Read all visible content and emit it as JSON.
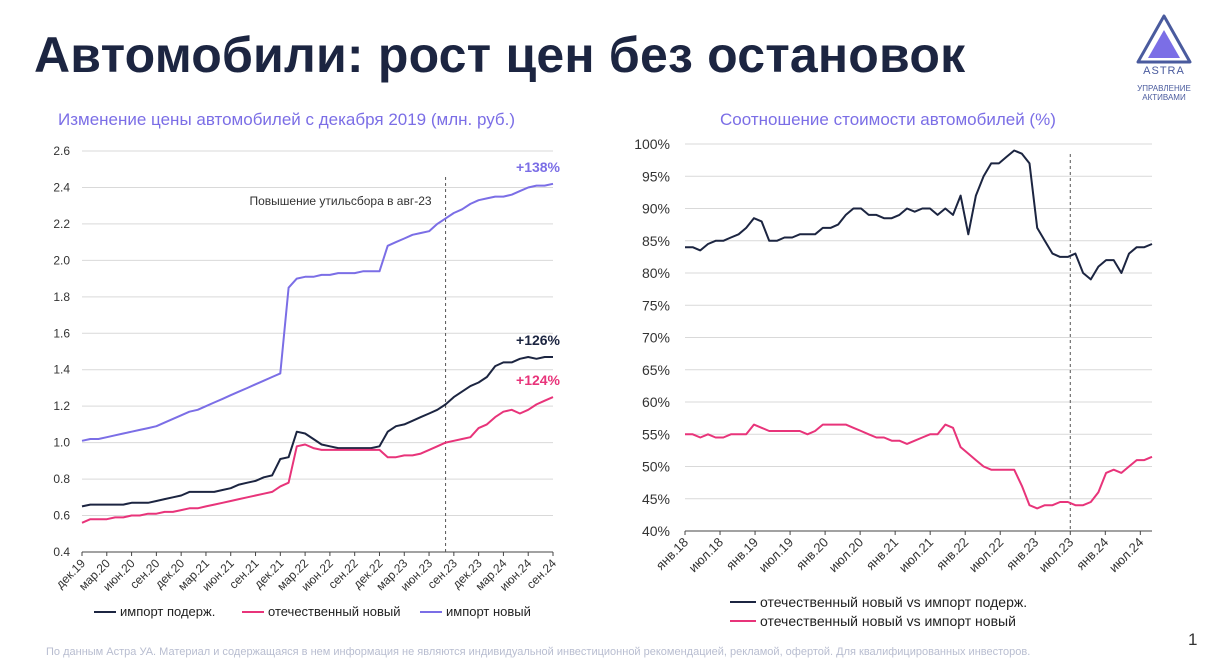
{
  "page": {
    "title": "Автомобили: рост цен без остановок",
    "logo": {
      "name": "ASTRA",
      "subtitle_line1": "УПРАВЛЕНИЕ",
      "subtitle_line2": "АКТИВАМИ"
    },
    "footer": "По данным Астра УА. Материал и содержащаяся в нем информация не являются индивидуальной инвестиционной рекомендацией, рекламой, офертой. Для квалифицированных инвесторов.",
    "page_number": "1"
  },
  "chart_data": [
    {
      "type": "line",
      "title": "Изменение цены автомобилей с декабря 2019 (млн. руб.)",
      "xlabel": "",
      "ylabel": "",
      "ylim": [
        0.4,
        2.6
      ],
      "y_ticks": [
        "0.4",
        "0.6",
        "0.8",
        "1.0",
        "1.2",
        "1.4",
        "1.6",
        "1.8",
        "2.0",
        "2.2",
        "2.4",
        "2.6"
      ],
      "grid": true,
      "legend": "bottom",
      "x": [
        "дек.19",
        "янв.20",
        "фев.20",
        "мар.20",
        "апр.20",
        "май.20",
        "июн.20",
        "июл.20",
        "авг.20",
        "сен.20",
        "окт.20",
        "ноя.20",
        "дек.20",
        "янв.21",
        "фев.21",
        "мар.21",
        "апр.21",
        "май.21",
        "июн.21",
        "июл.21",
        "авг.21",
        "сен.21",
        "окт.21",
        "ноя.21",
        "дек.21",
        "янв.22",
        "фев.22",
        "мар.22",
        "апр.22",
        "май.22",
        "июн.22",
        "июл.22",
        "авг.22",
        "сен.22",
        "окт.22",
        "ноя.22",
        "дек.22",
        "янв.23",
        "фев.23",
        "мар.23",
        "апр.23",
        "май.23",
        "июн.23",
        "июл.23",
        "авг.23",
        "сен.23",
        "окт.23",
        "ноя.23",
        "дек.23",
        "янв.24",
        "фев.24",
        "мар.24",
        "апр.24",
        "май.24",
        "июн.24",
        "июл.24",
        "авг.24",
        "сен.24"
      ],
      "x_tick_labels": [
        "дек.19",
        "мар.20",
        "июн.20",
        "сен.20",
        "дек.20",
        "мар.21",
        "июн.21",
        "сен.21",
        "дек.21",
        "мар.22",
        "июн.22",
        "сен.22",
        "дек.22",
        "мар.23",
        "июн.23",
        "сен.23",
        "дек.23",
        "мар.24",
        "июн.24",
        "сен.24"
      ],
      "series": [
        {
          "name": "импорт подерж.",
          "color": "#1c2541",
          "end_label": "+126%",
          "values": [
            0.65,
            0.66,
            0.66,
            0.66,
            0.66,
            0.66,
            0.67,
            0.67,
            0.67,
            0.68,
            0.69,
            0.7,
            0.71,
            0.73,
            0.73,
            0.73,
            0.73,
            0.74,
            0.75,
            0.77,
            0.78,
            0.79,
            0.81,
            0.82,
            0.91,
            0.92,
            1.06,
            1.05,
            1.02,
            0.99,
            0.98,
            0.97,
            0.97,
            0.97,
            0.97,
            0.97,
            0.98,
            1.06,
            1.09,
            1.1,
            1.12,
            1.14,
            1.16,
            1.18,
            1.21,
            1.25,
            1.28,
            1.31,
            1.33,
            1.36,
            1.42,
            1.44,
            1.44,
            1.46,
            1.47,
            1.46,
            1.47,
            1.47
          ]
        },
        {
          "name": "отечественный новый",
          "color": "#e8347a",
          "end_label": "+124%",
          "values": [
            0.56,
            0.58,
            0.58,
            0.58,
            0.59,
            0.59,
            0.6,
            0.6,
            0.61,
            0.61,
            0.62,
            0.62,
            0.63,
            0.64,
            0.64,
            0.65,
            0.66,
            0.67,
            0.68,
            0.69,
            0.7,
            0.71,
            0.72,
            0.73,
            0.76,
            0.78,
            0.98,
            0.99,
            0.97,
            0.96,
            0.96,
            0.96,
            0.96,
            0.96,
            0.96,
            0.96,
            0.96,
            0.92,
            0.92,
            0.93,
            0.93,
            0.94,
            0.96,
            0.98,
            1.0,
            1.01,
            1.02,
            1.03,
            1.08,
            1.1,
            1.14,
            1.17,
            1.18,
            1.16,
            1.18,
            1.21,
            1.23,
            1.25
          ]
        },
        {
          "name": "импорт новый",
          "color": "#7b6ee6",
          "end_label": "+138%",
          "values": [
            1.01,
            1.02,
            1.02,
            1.03,
            1.04,
            1.05,
            1.06,
            1.07,
            1.08,
            1.09,
            1.11,
            1.13,
            1.15,
            1.17,
            1.18,
            1.2,
            1.22,
            1.24,
            1.26,
            1.28,
            1.3,
            1.32,
            1.34,
            1.36,
            1.38,
            1.85,
            1.9,
            1.91,
            1.91,
            1.92,
            1.92,
            1.93,
            1.93,
            1.93,
            1.94,
            1.94,
            1.94,
            2.08,
            2.1,
            2.12,
            2.14,
            2.15,
            2.16,
            2.2,
            2.23,
            2.26,
            2.28,
            2.31,
            2.33,
            2.34,
            2.35,
            2.35,
            2.36,
            2.38,
            2.4,
            2.41,
            2.41,
            2.42
          ]
        }
      ],
      "annotation": {
        "text": "Повышение утильсбора в авг-23",
        "at_x": "авг.23"
      }
    },
    {
      "type": "line",
      "title": "Соотношение стоимости автомобилей (%)",
      "xlabel": "",
      "ylabel": "",
      "ylim": [
        40,
        100
      ],
      "y_ticks": [
        "40%",
        "45%",
        "50%",
        "55%",
        "60%",
        "65%",
        "70%",
        "75%",
        "80%",
        "85%",
        "90%",
        "95%",
        "100%"
      ],
      "grid": true,
      "legend": "bottom",
      "x_start": "янв.18",
      "x_tick_labels": [
        "янв.18",
        "июл.18",
        "янв.19",
        "июл.19",
        "янв.20",
        "июл.20",
        "янв.21",
        "июл.21",
        "янв.22",
        "июл.22",
        "янв.23",
        "июл.23",
        "янв.24",
        "июл.24"
      ],
      "series": [
        {
          "name": "отечественный новый vs импорт  подерж.",
          "color": "#1c2541",
          "values": [
            84,
            84,
            83.5,
            84.5,
            85,
            85,
            85.5,
            86,
            87,
            88.5,
            88,
            85,
            85,
            85.5,
            85.5,
            86,
            86,
            86,
            87,
            87,
            87.5,
            89,
            90,
            90,
            89,
            89,
            88.5,
            88.5,
            89,
            90,
            89.5,
            90,
            90,
            89,
            90,
            89,
            92,
            86,
            92,
            95,
            97,
            97,
            98,
            99,
            98.5,
            97,
            87,
            85,
            83,
            82.5,
            82.5,
            83,
            80,
            79,
            81,
            82,
            82,
            80,
            83,
            84,
            84,
            84.5
          ]
        },
        {
          "name": "отечественный новый vs импорт новый",
          "color": "#e8347a",
          "values": [
            55,
            55,
            54.5,
            55,
            54.5,
            54.5,
            55,
            55,
            55,
            56.5,
            56,
            55.5,
            55.5,
            55.5,
            55.5,
            55.5,
            55,
            55.5,
            56.5,
            56.5,
            56.5,
            56.5,
            56,
            55.5,
            55,
            54.5,
            54.5,
            54,
            54,
            53.5,
            54,
            54.5,
            55,
            55,
            56.5,
            56,
            53,
            52,
            51,
            50,
            49.5,
            49.5,
            49.5,
            49.5,
            47,
            44,
            43.5,
            44,
            44,
            44.5,
            44.5,
            44,
            44,
            44.5,
            46,
            49,
            49.5,
            49,
            50,
            51,
            51,
            51.5
          ]
        }
      ],
      "annotation_x": "июл.23"
    }
  ]
}
